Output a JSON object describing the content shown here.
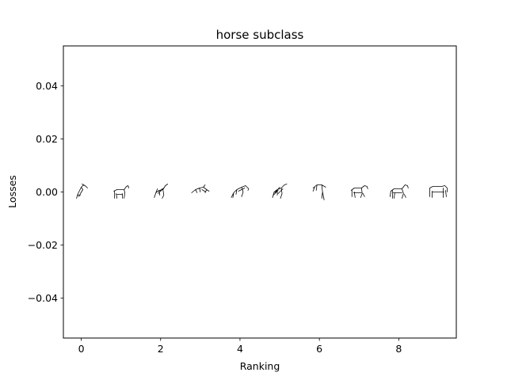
{
  "chart_data": {
    "type": "scatter",
    "title": "horse subclass",
    "xlabel": "Ranking",
    "ylabel": "Losses",
    "xlim": [
      -0.45,
      9.45
    ],
    "ylim": [
      -0.055,
      0.055
    ],
    "x_ticks": [
      0,
      2,
      4,
      6,
      8
    ],
    "y_ticks": [
      -0.04,
      -0.02,
      0.0,
      0.02,
      0.04
    ],
    "x_tick_labels": [
      "0",
      "2",
      "4",
      "6",
      "8"
    ],
    "y_tick_labels": [
      "−0.04",
      "−0.02",
      "0.00",
      "0.02",
      "0.04"
    ],
    "grid": false,
    "marker": "horse-sketch-thumbnail",
    "points": [
      {
        "x": 0,
        "y": 0.0
      },
      {
        "x": 1,
        "y": 0.0
      },
      {
        "x": 2,
        "y": 0.0
      },
      {
        "x": 3,
        "y": 0.0
      },
      {
        "x": 4,
        "y": 0.0
      },
      {
        "x": 5,
        "y": 0.0
      },
      {
        "x": 6,
        "y": 0.0
      },
      {
        "x": 7,
        "y": 0.0
      },
      {
        "x": 8,
        "y": 0.0
      },
      {
        "x": 9,
        "y": 0.0
      }
    ],
    "colors": {
      "axes": "#000000",
      "background": "#ffffff",
      "marker_stroke": "#000000"
    }
  }
}
